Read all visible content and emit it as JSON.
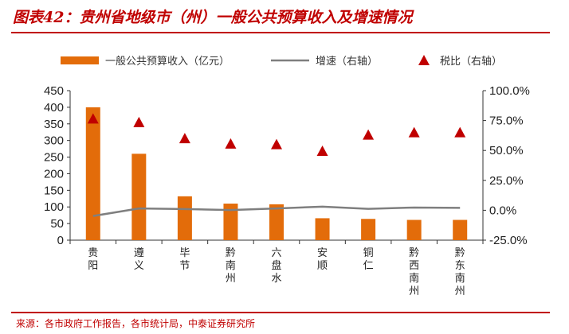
{
  "header": {
    "title": "图表42：贵州省地级市（州）一般公共预算收入及增速情况"
  },
  "footer": {
    "source": "来源：各市政府工作报告，各市统计局，中泰证券研究所"
  },
  "colors": {
    "bar": "#e36c0a",
    "growth_line": "#7f7f7f",
    "tax_marker": "#c00000",
    "accent": "#c00000"
  },
  "chart_data": {
    "type": "bar",
    "title": "",
    "categories": [
      "贵阳",
      "遵义",
      "毕节",
      "黔南州",
      "六盘水",
      "安顺",
      "铜仁",
      "黔西南州",
      "黔东南州"
    ],
    "series": [
      {
        "name": "一般公共预算收入（亿元）",
        "kind": "bar",
        "axis": "left",
        "values": [
          400,
          260,
          132,
          110,
          108,
          66,
          64,
          61,
          61
        ]
      },
      {
        "name": "增速（右轴）",
        "kind": "line",
        "axis": "right",
        "values": [
          -4.8,
          1.5,
          1.0,
          0.2,
          1.5,
          3.0,
          1.2,
          2.3,
          2.0
        ]
      },
      {
        "name": "税比（右轴）",
        "kind": "scatter",
        "marker": "triangle",
        "axis": "right",
        "values": [
          76.5,
          73.5,
          60.0,
          55.5,
          55.0,
          49.5,
          63.0,
          65.0,
          65.0
        ]
      }
    ],
    "y_left": {
      "ylim": [
        0,
        450
      ],
      "ticks": [
        "0",
        "50",
        "100",
        "150",
        "200",
        "250",
        "300",
        "350",
        "400",
        "450"
      ]
    },
    "y_right": {
      "ylim": [
        -25,
        100
      ],
      "ticks": [
        "-25.0%",
        "0.0%",
        "25.0%",
        "50.0%",
        "75.0%",
        "100.0%"
      ]
    },
    "grid": false,
    "legend_position": "top"
  }
}
